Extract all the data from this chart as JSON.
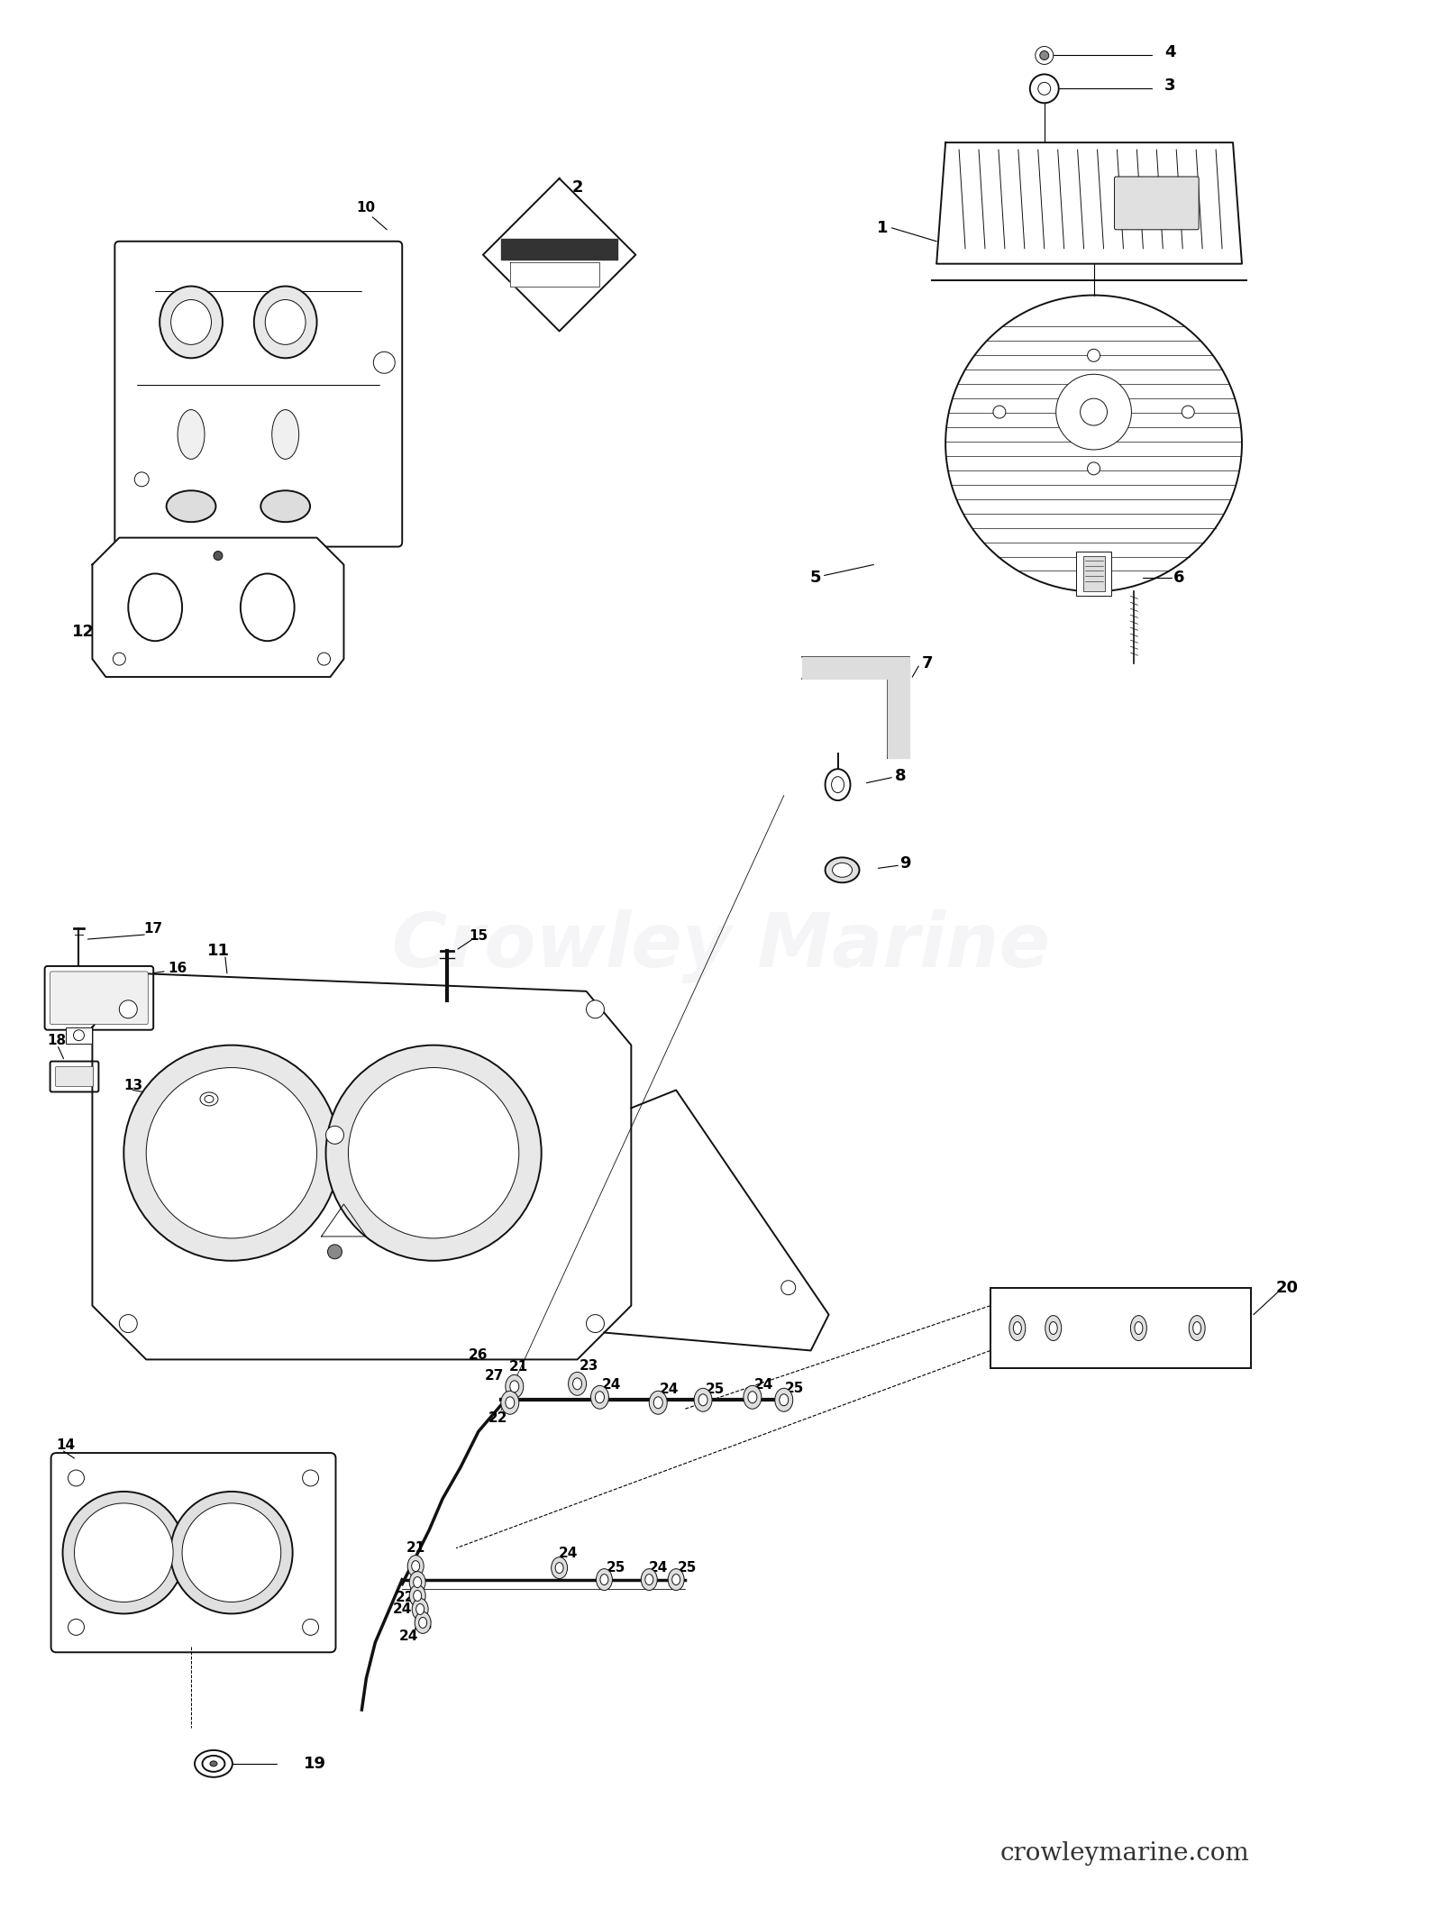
{
  "bg_color": "#ffffff",
  "fig_width": 16.0,
  "fig_height": 21.17,
  "dpi": 100,
  "watermark_text": "Crowley Marine",
  "watermark_fontsize": 60,
  "watermark_alpha": 0.12,
  "watermark_color": "#b0b0c8",
  "footer_text": "crowleymarine.com",
  "footer_fontsize": 20,
  "label_fontsize": 13,
  "small_label_fontsize": 11,
  "line_color": "#111111",
  "lw_main": 1.4,
  "lw_thin": 0.7,
  "lw_thick": 2.2
}
